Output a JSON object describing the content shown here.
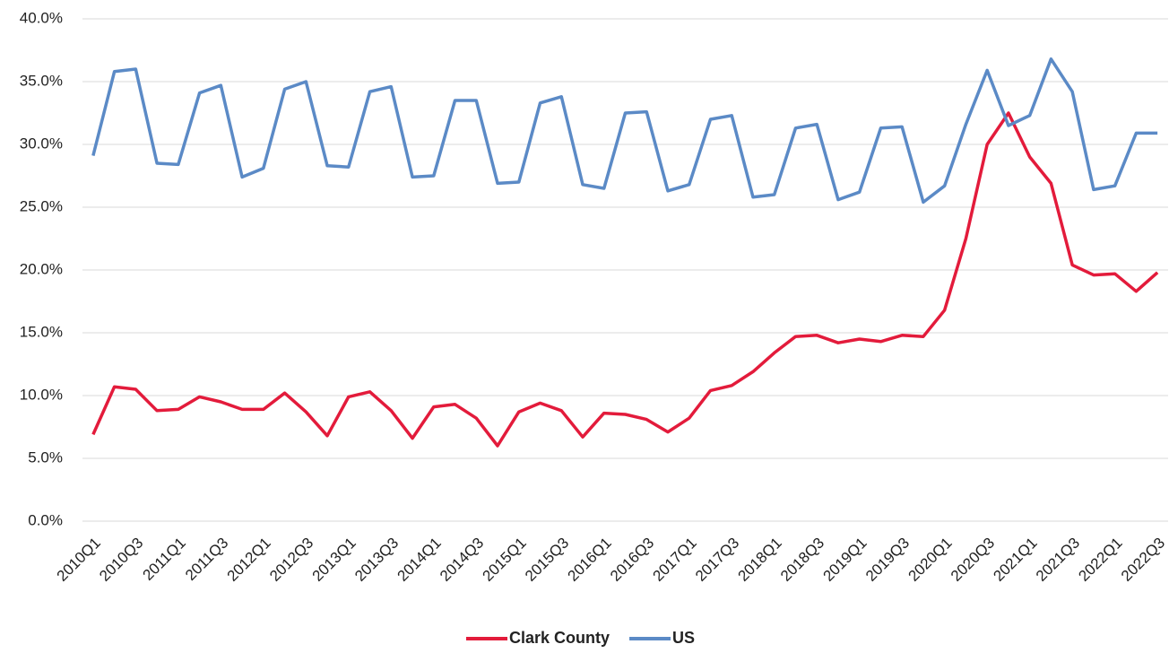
{
  "chart_data": {
    "type": "line",
    "categories": [
      "2010Q1",
      null,
      "2010Q3",
      null,
      "2011Q1",
      null,
      "2011Q3",
      null,
      "2012Q1",
      null,
      "2012Q3",
      null,
      "2013Q1",
      null,
      "2013Q3",
      null,
      "2014Q1",
      null,
      "2014Q3",
      null,
      "2015Q1",
      null,
      "2015Q3",
      null,
      "2016Q1",
      null,
      "2016Q3",
      null,
      "2017Q1",
      null,
      "2017Q3",
      null,
      "2018Q1",
      null,
      "2018Q3",
      null,
      "2019Q1",
      null,
      "2019Q3",
      null,
      "2020Q1",
      null,
      "2020Q3",
      null,
      "2021Q1",
      null,
      "2021Q3",
      null,
      "2022Q1",
      null,
      "2022Q3"
    ],
    "series": [
      {
        "name": "Clark County",
        "color": "#e31b3b",
        "values": [
          6.9,
          10.7,
          10.5,
          8.8,
          8.9,
          9.9,
          9.5,
          8.9,
          8.9,
          10.2,
          8.7,
          6.8,
          9.9,
          10.3,
          8.8,
          6.6,
          9.1,
          9.3,
          8.2,
          6.0,
          8.7,
          9.4,
          8.8,
          6.7,
          8.6,
          8.5,
          8.1,
          7.1,
          8.2,
          10.4,
          10.8,
          11.9,
          13.4,
          14.7,
          14.8,
          14.2,
          14.5,
          14.3,
          14.8,
          14.7,
          16.8,
          22.5,
          30.0,
          32.5,
          29.0,
          26.9,
          20.4,
          19.6,
          19.7,
          18.3,
          19.8
        ]
      },
      {
        "name": "US",
        "color": "#5b8ac6",
        "values": [
          29.1,
          35.8,
          36.0,
          28.5,
          28.4,
          34.1,
          34.7,
          27.4,
          28.1,
          34.4,
          35.0,
          28.3,
          28.2,
          34.2,
          34.6,
          27.4,
          27.5,
          33.5,
          33.5,
          26.9,
          27.0,
          33.3,
          33.8,
          26.8,
          26.5,
          32.5,
          32.6,
          26.3,
          26.8,
          32.0,
          32.3,
          25.8,
          26.0,
          31.3,
          31.6,
          25.6,
          26.2,
          31.3,
          31.4,
          25.4,
          26.7,
          31.6,
          35.9,
          31.5,
          32.3,
          36.8,
          34.2,
          26.4,
          26.7,
          30.9,
          30.9
        ]
      }
    ],
    "ylim": [
      0,
      40
    ],
    "yticks": [
      {
        "value": 0,
        "label": "0.0%"
      },
      {
        "value": 5,
        "label": "5.0%"
      },
      {
        "value": 10,
        "label": "10.0%"
      },
      {
        "value": 15,
        "label": "15.0%"
      },
      {
        "value": 20,
        "label": "20.0%"
      },
      {
        "value": 25,
        "label": "25.0%"
      },
      {
        "value": 30,
        "label": "30.0%"
      },
      {
        "value": 35,
        "label": "35.0%"
      },
      {
        "value": 40,
        "label": "40.0%"
      }
    ],
    "grid": true,
    "legend": "bottom"
  }
}
